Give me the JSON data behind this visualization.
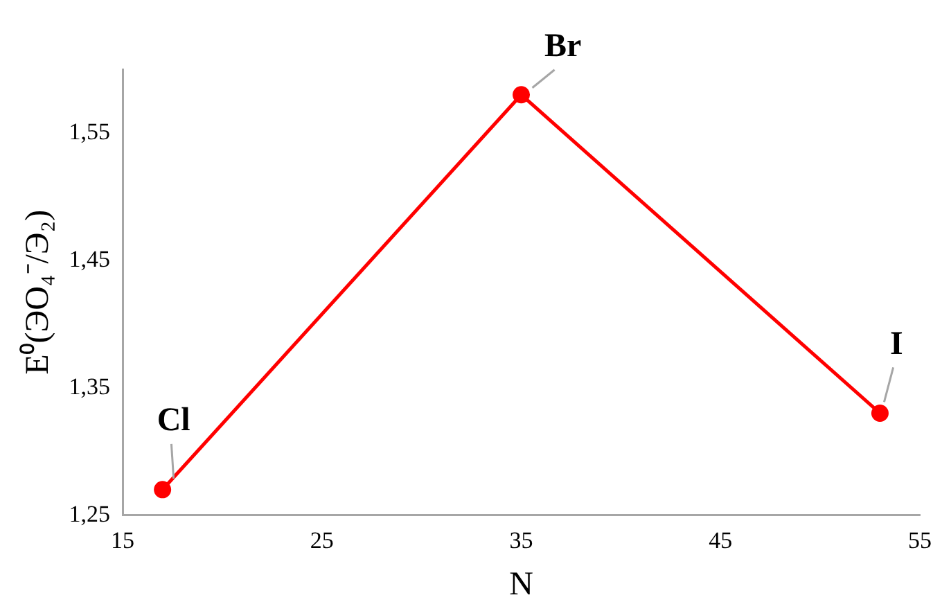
{
  "chart_data": {
    "type": "line",
    "xlabel": "N",
    "ylabel": "E⁰(ЭO₄⁻/Э₂)",
    "x": [
      17,
      35,
      53
    ],
    "series": [
      {
        "color": "#ff0000",
        "values": [
          1.27,
          1.58,
          1.33
        ]
      }
    ],
    "xlim": [
      15,
      55
    ],
    "xticks": [
      15,
      25,
      35,
      45,
      55
    ],
    "ylim": [
      1.25,
      1.6
    ],
    "yticks": [
      {
        "value": 1.25,
        "label": "1,25"
      },
      {
        "value": 1.35,
        "label": "1,35"
      },
      {
        "value": 1.45,
        "label": "1,45"
      },
      {
        "value": 1.55,
        "label": "1,55"
      }
    ],
    "grid": false,
    "legend": false,
    "marker": "circle",
    "line_style": "solid",
    "annotations": [
      {
        "text": "Cl",
        "x": 17,
        "y": 1.27
      },
      {
        "text": "Br",
        "x": 35,
        "y": 1.58
      },
      {
        "text": "I",
        "x": 53,
        "y": 1.33
      }
    ]
  }
}
